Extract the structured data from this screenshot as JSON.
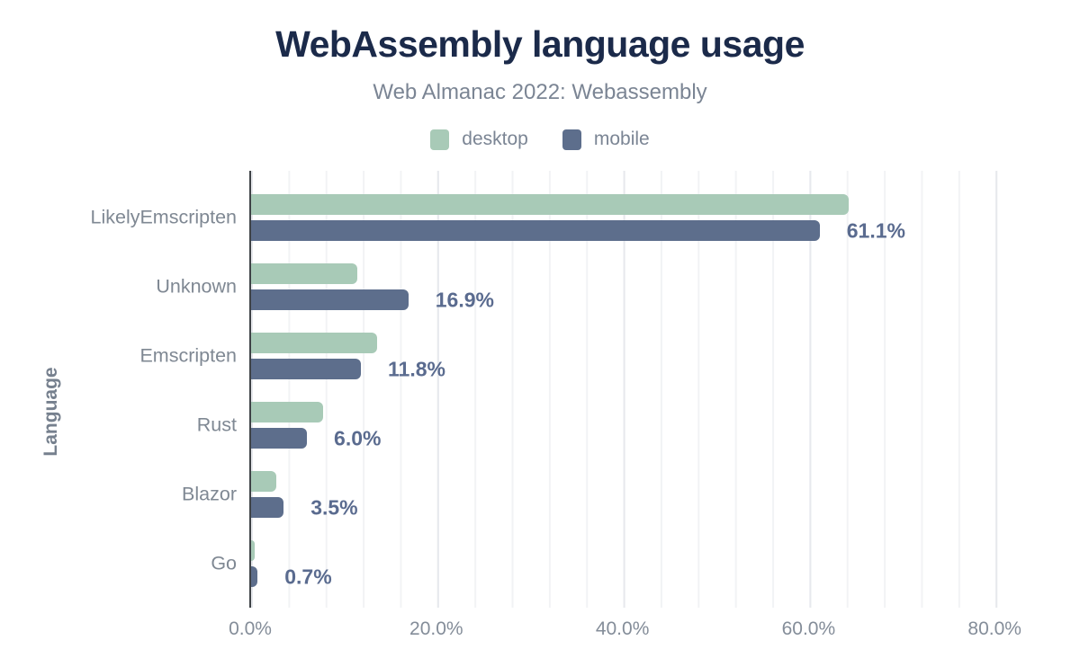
{
  "title": "WebAssembly language usage",
  "subtitle": "Web Almanac 2022: Webassembly",
  "legend": [
    {
      "label": "desktop",
      "color": "#a8cab7"
    },
    {
      "label": "mobile",
      "color": "#5d6e8c"
    }
  ],
  "colors": {
    "title": "#1b2a4a",
    "muted_text": "#7b8594",
    "data_label": "#5a6b8f",
    "axis_line": "#3f4347",
    "gridline_minor": "#f2f3f5",
    "gridline_major": "#e7e9ed"
  },
  "chart_data": {
    "type": "bar",
    "orientation": "horizontal",
    "title": "WebAssembly language usage",
    "subtitle": "Web Almanac 2022: Webassembly",
    "xlabel": "",
    "ylabel": "Language",
    "categories": [
      "LikelyEmscripten",
      "Unknown",
      "Emscripten",
      "Rust",
      "Blazor",
      "Go"
    ],
    "series": [
      {
        "name": "desktop",
        "color": "#a8cab7",
        "values": [
          64.2,
          11.4,
          13.5,
          7.7,
          2.7,
          0.4
        ]
      },
      {
        "name": "mobile",
        "color": "#5d6e8c",
        "values": [
          61.1,
          16.9,
          11.8,
          6.0,
          3.5,
          0.7
        ]
      }
    ],
    "data_labels": [
      "61.1%",
      "16.9%",
      "11.8%",
      "6.0%",
      "3.5%",
      "0.7%"
    ],
    "data_label_series": "mobile",
    "x_ticks": [
      "0.0%",
      "20.0%",
      "40.0%",
      "60.0%",
      "80.0%"
    ],
    "x_tick_values": [
      0,
      20,
      40,
      60,
      80
    ],
    "xlim": [
      0,
      82.8
    ],
    "grid": "vertical minor gridlines every 4%, major every 20%",
    "legend_position": "top center"
  }
}
